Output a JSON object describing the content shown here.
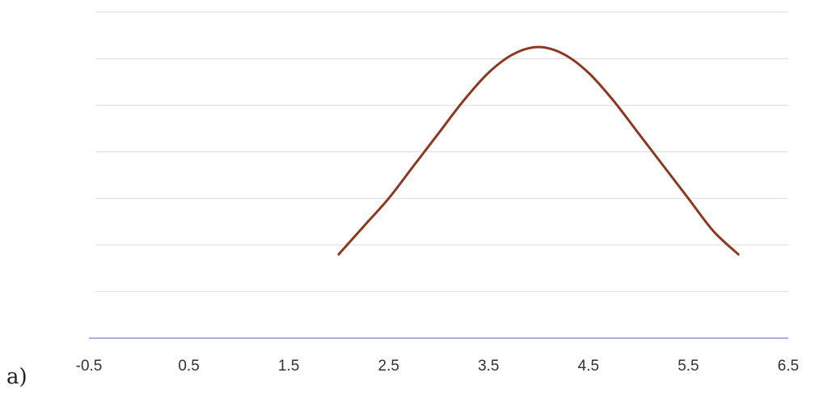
{
  "panel_label": "a)",
  "chart_data": {
    "type": "line",
    "title": "",
    "xlabel": "",
    "ylabel": "",
    "xlim": [
      -0.5,
      6.5
    ],
    "ylim": [
      0,
      7
    ],
    "x_ticks": [
      -0.5,
      0.5,
      1.5,
      2.5,
      3.5,
      4.5,
      5.5,
      6.5
    ],
    "x_tick_labels": [
      "-0.5",
      "0.5",
      "1.5",
      "2.5",
      "3.5",
      "4.5",
      "5.5",
      "6.5"
    ],
    "y_gridlines": [
      1,
      2,
      3,
      4,
      5,
      6,
      7
    ],
    "y_tick_labels_visible": false,
    "grid": true,
    "legend": "none",
    "series": [
      {
        "color": "#8b3a22",
        "x": [
          2.0,
          2.25,
          2.5,
          2.75,
          3.0,
          3.25,
          3.5,
          3.75,
          4.0,
          4.25,
          4.5,
          4.75,
          5.0,
          5.25,
          5.5,
          5.75,
          6.0
        ],
        "y": [
          1.8,
          2.4,
          3.0,
          3.7,
          4.4,
          5.1,
          5.7,
          6.1,
          6.25,
          6.1,
          5.7,
          5.1,
          4.4,
          3.7,
          3.0,
          2.3,
          1.8
        ]
      }
    ]
  },
  "colors": {
    "axis": "#8f97c8",
    "grid": "#dcdcdc"
  }
}
